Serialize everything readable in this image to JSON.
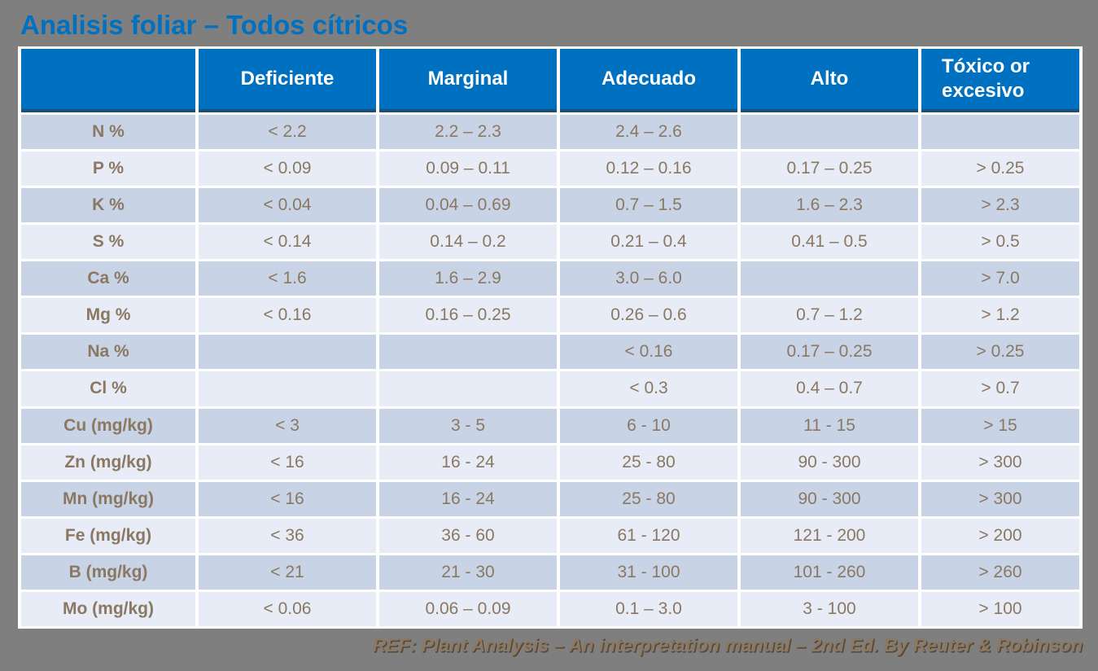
{
  "title": "Analisis foliar – Todos cítricos",
  "footer": "REF: Plant Analysis – An interpretation manual – 2nd Ed. By Reuter & Robinson",
  "colors": {
    "background": "#7F7F7F",
    "title_blue": "#0070C0",
    "header_blue": "#0070C0",
    "header_underline_navy": "#1F4E79",
    "row_stripe_dark": "#C9D3E6",
    "row_stripe_light": "#E8ECF6",
    "body_text_brown": "#8A7862",
    "header_text": "#FFFFFF"
  },
  "table": {
    "columns": [
      "",
      "Deficiente",
      "Marginal",
      "Adecuado",
      "Alto",
      "Tóxico or excesivo"
    ],
    "rows": [
      {
        "label": "N %",
        "values": [
          "< 2.2",
          "2.2 – 2.3",
          "2.4 – 2.6",
          "",
          ""
        ]
      },
      {
        "label": "P %",
        "values": [
          "< 0.09",
          "0.09 – 0.11",
          "0.12 – 0.16",
          "0.17 – 0.25",
          "> 0.25"
        ]
      },
      {
        "label": "K %",
        "values": [
          "< 0.04",
          "0.04 – 0.69",
          "0.7 – 1.5",
          "1.6 – 2.3",
          "> 2.3"
        ]
      },
      {
        "label": "S %",
        "values": [
          "< 0.14",
          "0.14 – 0.2",
          "0.21 – 0.4",
          "0.41 – 0.5",
          "> 0.5"
        ]
      },
      {
        "label": "Ca %",
        "values": [
          "< 1.6",
          "1.6 – 2.9",
          "3.0 – 6.0",
          "",
          "> 7.0"
        ]
      },
      {
        "label": "Mg %",
        "values": [
          "< 0.16",
          "0.16 – 0.25",
          "0.26 – 0.6",
          "0.7 – 1.2",
          "> 1.2"
        ]
      },
      {
        "label": "Na %",
        "values": [
          "",
          "",
          "< 0.16",
          "0.17 – 0.25",
          "> 0.25"
        ]
      },
      {
        "label": "Cl %",
        "values": [
          "",
          "",
          "< 0.3",
          "0.4 – 0.7",
          "> 0.7"
        ]
      },
      {
        "label": "Cu (mg/kg)",
        "values": [
          "< 3",
          "3 - 5",
          "6 - 10",
          "11 - 15",
          "> 15"
        ]
      },
      {
        "label": "Zn (mg/kg)",
        "values": [
          "< 16",
          "16 - 24",
          "25 - 80",
          "90 - 300",
          "> 300"
        ]
      },
      {
        "label": "Mn (mg/kg)",
        "values": [
          "< 16",
          "16 - 24",
          "25 - 80",
          "90 - 300",
          "> 300"
        ]
      },
      {
        "label": "Fe (mg/kg)",
        "values": [
          "< 36",
          "36 - 60",
          "61 - 120",
          "121 - 200",
          "> 200"
        ]
      },
      {
        "label": "B (mg/kg)",
        "values": [
          "< 21",
          "21 - 30",
          "31 - 100",
          "101 - 260",
          "> 260"
        ]
      },
      {
        "label": "Mo (mg/kg)",
        "values": [
          "< 0.06",
          "0.06 – 0.09",
          "0.1 – 3.0",
          "3 - 100",
          "> 100"
        ]
      }
    ]
  }
}
